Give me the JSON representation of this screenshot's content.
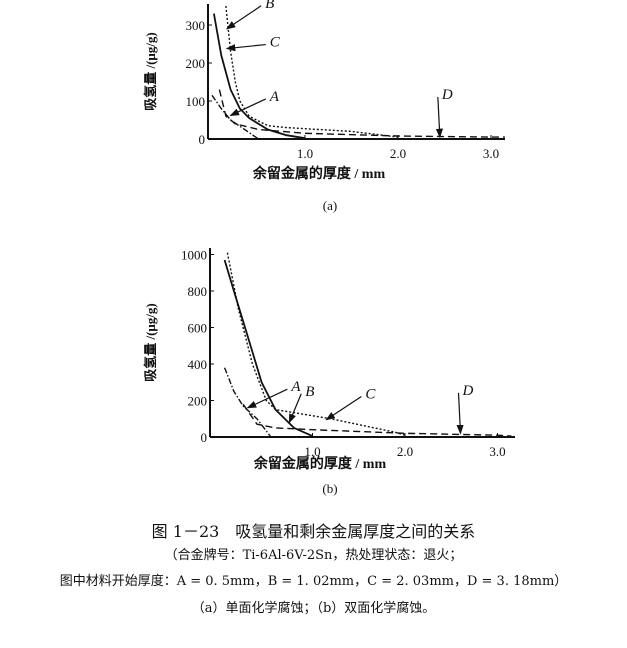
{
  "chart_data": [
    {
      "type": "line",
      "panel_label": "(a)",
      "xlabel": "余留金属的厚度 / mm",
      "ylabel": "吸氢量 /(μg/g)",
      "xlim": [
        0,
        3.15
      ],
      "ylim": [
        0,
        350
      ],
      "xticks": [
        "1.0",
        "2.0",
        "3.0"
      ],
      "xtick_values": [
        1,
        2,
        3
      ],
      "yticks": [
        "0",
        "100",
        "200",
        "300"
      ],
      "ytick_values": [
        0,
        100,
        200,
        300
      ],
      "grid": false,
      "series": [
        {
          "style": "solid",
          "points": [
            [
              0.02,
              330
            ],
            [
              0.1,
              220
            ],
            [
              0.2,
              130
            ],
            [
              0.3,
              80
            ],
            [
              0.4,
              55
            ],
            [
              0.6,
              25
            ],
            [
              0.8,
              10
            ],
            [
              1.0,
              2
            ]
          ]
        },
        {
          "style": "short-dash",
          "points": [
            [
              0.15,
              350
            ],
            [
              0.17,
              300
            ],
            [
              0.2,
              230
            ],
            [
              0.25,
              150
            ],
            [
              0.3,
              100
            ],
            [
              0.4,
              60
            ],
            [
              0.6,
              35
            ],
            [
              0.8,
              30
            ],
            [
              1.5,
              20
            ],
            [
              2.0,
              5
            ]
          ]
        },
        {
          "style": "long-dash",
          "points": [
            [
              0.08,
              130
            ],
            [
              0.15,
              60
            ],
            [
              0.25,
              40
            ],
            [
              0.5,
              25
            ],
            [
              1.0,
              15
            ],
            [
              2.0,
              8
            ],
            [
              3.0,
              5
            ],
            [
              3.15,
              5
            ]
          ]
        },
        {
          "style": "dash-dot",
          "points": [
            [
              0.0,
              115
            ],
            [
              0.1,
              80
            ],
            [
              0.2,
              50
            ],
            [
              0.35,
              25
            ],
            [
              0.5,
              0
            ]
          ]
        }
      ],
      "annotations": [
        {
          "text": "A",
          "at": [
            0.6,
            95
          ],
          "to": [
            0.2,
            62
          ]
        },
        {
          "text": "B",
          "at": [
            0.55,
            340
          ],
          "to": [
            0.16,
            290
          ]
        },
        {
          "text": "C",
          "at": [
            0.6,
            238
          ],
          "to": [
            0.16,
            238
          ]
        },
        {
          "text": "D",
          "at": [
            2.45,
            100
          ],
          "to": [
            2.45,
            5
          ]
        }
      ]
    },
    {
      "type": "line",
      "panel_label": "(b)",
      "xlabel": "余留金属的厚度 / mm",
      "ylabel": "吸氢量 /(μg/g)",
      "xlim": [
        0,
        3.2
      ],
      "ylim": [
        0,
        1000
      ],
      "xticks": [
        "1.0",
        "2.0",
        "3.0"
      ],
      "xtick_values": [
        1,
        2,
        3
      ],
      "yticks": [
        "0",
        "200",
        "400",
        "600",
        "800",
        "1000"
      ],
      "ytick_values": [
        0,
        200,
        400,
        600,
        800,
        1000
      ],
      "grid": false,
      "series": [
        {
          "style": "solid",
          "points": [
            [
              0.05,
              970
            ],
            [
              0.15,
              800
            ],
            [
              0.3,
              550
            ],
            [
              0.45,
              300
            ],
            [
              0.6,
              150
            ],
            [
              0.8,
              50
            ],
            [
              1.0,
              5
            ]
          ]
        },
        {
          "style": "short-dash",
          "points": [
            [
              0.08,
              1010
            ],
            [
              0.2,
              700
            ],
            [
              0.35,
              400
            ],
            [
              0.5,
              200
            ],
            [
              0.6,
              150
            ],
            [
              1.2,
              100
            ],
            [
              1.9,
              25
            ],
            [
              2.0,
              10
            ]
          ]
        },
        {
          "style": "long-dash",
          "points": [
            [
              0.25,
              180
            ],
            [
              0.4,
              70
            ],
            [
              0.6,
              50
            ],
            [
              1.0,
              40
            ],
            [
              2.0,
              20
            ],
            [
              3.0,
              10
            ],
            [
              3.15,
              5
            ]
          ]
        },
        {
          "style": "dash-dot",
          "points": [
            [
              0.05,
              380
            ],
            [
              0.15,
              250
            ],
            [
              0.25,
              170
            ],
            [
              0.4,
              100
            ],
            [
              0.55,
              0
            ]
          ]
        }
      ],
      "annotations": [
        {
          "text": "A",
          "at": [
            0.75,
            240
          ],
          "to": [
            0.3,
            160
          ]
        },
        {
          "text": "B",
          "at": [
            0.9,
            215
          ],
          "to": [
            0.75,
            80
          ]
        },
        {
          "text": "C",
          "at": [
            1.55,
            200
          ],
          "to": [
            1.15,
            95
          ]
        },
        {
          "text": "D",
          "at": [
            2.6,
            220
          ],
          "to": [
            2.6,
            20
          ]
        }
      ]
    }
  ],
  "caption": {
    "title": "图 1－23　吸氢量和剩余金属厚度之间的关系",
    "line1": "（合金牌号：Ti-6Al-6V-2Sn，热处理状态：退火；",
    "line2": "图中材料开始厚度：A = 0. 5mm，B = 1. 02mm，C = 2. 03mm，D = 3. 18mm）",
    "line3": "（a）单面化学腐蚀；（b）双面化学腐蚀。"
  }
}
